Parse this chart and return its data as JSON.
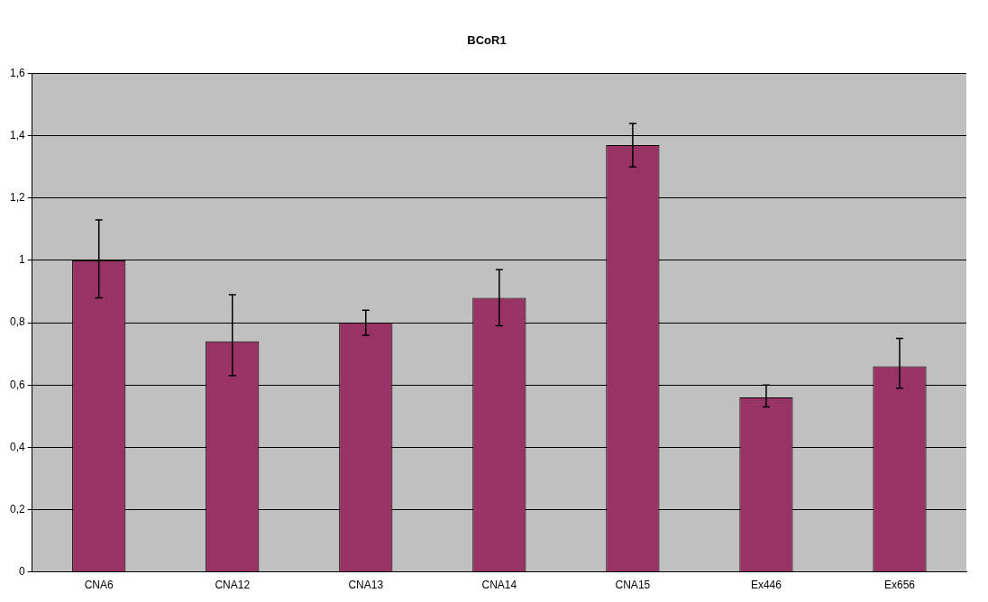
{
  "chart_data": {
    "type": "bar",
    "title": "BCoR1",
    "categories": [
      "CNA6",
      "CNA12",
      "CNA13",
      "CNA14",
      "CNA15",
      "Ex446",
      "Ex656"
    ],
    "values": [
      1.0,
      0.74,
      0.8,
      0.88,
      1.37,
      0.56,
      0.66
    ],
    "errors": [
      [
        0.88,
        1.13
      ],
      [
        0.63,
        0.89
      ],
      [
        0.76,
        0.84
      ],
      [
        0.79,
        0.97
      ],
      [
        1.3,
        1.44
      ],
      [
        0.53,
        0.6
      ],
      [
        0.59,
        0.75
      ]
    ],
    "color": "#993366",
    "ylim": [
      0,
      1.6
    ],
    "yticks": [
      0,
      {
        "value": 0.2,
        "label": "0,2"
      },
      {
        "value": 0.4,
        "label": "0,4"
      },
      {
        "value": 0.6,
        "label": "0,6"
      },
      {
        "value": 0.8,
        "label": "0,8"
      },
      1,
      {
        "value": 1.2,
        "label": "1,2"
      },
      {
        "value": 1.4,
        "label": "1,4"
      },
      {
        "value": 1.6,
        "label": "1,6"
      }
    ],
    "grid": "y"
  }
}
